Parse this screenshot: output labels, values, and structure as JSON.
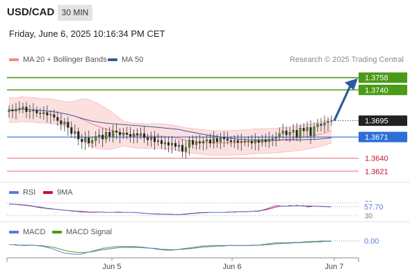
{
  "header": {
    "pair": "USD/CAD",
    "timeframe": "30 MIN",
    "datetime": "Friday, June 6, 2025 10:16:34 PM CET"
  },
  "legend": {
    "ma20_bb": "MA 20 + Bollinger Bands",
    "ma50": "MA 50",
    "credit": "Research © 2025 Trading Central"
  },
  "rsi_legend": {
    "rsi": "RSI",
    "ma9": "9MA"
  },
  "macd_legend": {
    "macd": "MACD",
    "signal": "MACD Signal"
  },
  "colors": {
    "green": "#4b9a18",
    "blue": "#2c6fd6",
    "red": "#ea8c8c",
    "redtext": "#c8102e",
    "dark": "#222222",
    "ma50": "#3a5a99",
    "ma20": "#f08a8a",
    "band": "#fbdada",
    "rsi": "#5b7ad9",
    "rsi_ma": "#c8102e",
    "macd": "#5b7ad9",
    "macd_signal": "#4b9a18"
  },
  "chart_data": [
    {
      "type": "candlestick",
      "ylim": [
        1.3605,
        1.3775
      ],
      "x_ticks": [
        "Jun 5",
        "Jun 6",
        "Jun 7"
      ],
      "price_levels": [
        {
          "value": 1.3758,
          "label": "1.3758",
          "kind": "resistance"
        },
        {
          "value": 1.374,
          "label": "1.3740",
          "kind": "resistance"
        },
        {
          "value": 1.3695,
          "label": "1.3695",
          "kind": "last-price"
        },
        {
          "value": 1.3671,
          "label": "1.3671",
          "kind": "pivot"
        },
        {
          "value": 1.364,
          "label": "1.3640",
          "kind": "support"
        },
        {
          "value": 1.3621,
          "label": "1.3621",
          "kind": "support"
        }
      ],
      "forecast_arrow": {
        "from": 1.3695,
        "to": 1.3753
      },
      "close": [
        1.3711,
        1.3709,
        1.3712,
        1.3713,
        1.3715,
        1.3708,
        1.3709,
        1.371,
        1.3706,
        1.3705,
        1.3707,
        1.3703,
        1.3704,
        1.37,
        1.3695,
        1.369,
        1.3693,
        1.3685,
        1.3676,
        1.3679,
        1.3668,
        1.3664,
        1.367,
        1.3662,
        1.3666,
        1.3672,
        1.3674,
        1.3668,
        1.3678,
        1.3672,
        1.368,
        1.3678,
        1.3674,
        1.3677,
        1.3675,
        1.3672,
        1.3676,
        1.3674,
        1.3676,
        1.367,
        1.3667,
        1.3671,
        1.3664,
        1.3666,
        1.3661,
        1.3663,
        1.3659,
        1.3662,
        1.3657,
        1.3659,
        1.365,
        1.3656,
        1.3666,
        1.366,
        1.3664,
        1.3662,
        1.3665,
        1.3667,
        1.3662,
        1.3669,
        1.3664,
        1.367,
        1.3668,
        1.3666,
        1.3664,
        1.3666,
        1.3663,
        1.3665,
        1.3664,
        1.3665,
        1.3662,
        1.3666,
        1.3663,
        1.3667,
        1.3664,
        1.3668,
        1.3669,
        1.3671,
        1.3676,
        1.368,
        1.3674,
        1.3678,
        1.3681,
        1.3671,
        1.3684,
        1.368,
        1.3685,
        1.3673,
        1.3686,
        1.369,
        1.3688,
        1.3692,
        1.3694,
        1.3695
      ]
    },
    {
      "type": "line",
      "title": "RSI",
      "y_ticks": [
        70,
        30
      ],
      "value_label": "57.70",
      "rsi": [
        67,
        66,
        65,
        65,
        64,
        63,
        62,
        60,
        58,
        57,
        55,
        53,
        52,
        50,
        49,
        48,
        47,
        46,
        44,
        43,
        42,
        41,
        41,
        40,
        40,
        40,
        41,
        41,
        40,
        40,
        40,
        41,
        41,
        40,
        40,
        40,
        40,
        39,
        38,
        37,
        36,
        35,
        35,
        34,
        34,
        34,
        33,
        33,
        33,
        33,
        34,
        35,
        36,
        37,
        38,
        39,
        40,
        40,
        40,
        40,
        40,
        40,
        40,
        41,
        41,
        42,
        42,
        42,
        42,
        42,
        43,
        44,
        45,
        47,
        50,
        54,
        58,
        62,
        61,
        59,
        60,
        62,
        60,
        63,
        60,
        62,
        57,
        58,
        61,
        59,
        58,
        59,
        57,
        58
      ],
      "ma9": [
        66,
        66,
        65,
        64,
        63,
        62,
        61,
        59,
        57,
        55,
        54,
        52,
        51,
        50,
        49,
        48,
        47,
        46,
        45,
        44,
        43,
        43,
        42,
        41,
        41,
        41,
        41,
        41,
        40,
        40,
        40,
        40,
        40,
        40,
        40,
        40,
        40,
        39,
        38,
        37,
        36,
        35,
        35,
        35,
        34,
        34,
        34,
        34,
        33,
        33,
        33,
        34,
        35,
        36,
        37,
        38,
        39,
        39,
        40,
        40,
        40,
        40,
        40,
        40,
        41,
        41,
        42,
        42,
        42,
        42,
        43,
        43,
        44,
        46,
        48,
        51,
        54,
        57,
        59,
        60,
        60,
        60,
        61,
        61,
        61,
        60,
        60,
        60,
        60,
        59,
        59,
        58,
        58,
        58
      ]
    },
    {
      "type": "line",
      "title": "MACD",
      "value_label": "0.00",
      "macd": [
        0.2,
        0.2,
        0.1,
        0.1,
        0.0,
        0.0,
        0.1,
        0.1,
        0.0,
        -0.1,
        -0.2,
        -0.4,
        -0.6,
        -0.8,
        -1.1,
        -1.4,
        -1.6,
        -1.7,
        -1.8,
        -1.9,
        -1.9,
        -1.8,
        -1.6,
        -1.4,
        -1.2,
        -1.0,
        -0.8,
        -0.6,
        -0.5,
        -0.4,
        -0.3,
        -0.2,
        -0.2,
        -0.2,
        -0.2,
        -0.2,
        -0.2,
        -0.3,
        -0.3,
        -0.4,
        -0.5,
        -0.6,
        -0.7,
        -0.8,
        -0.9,
        -1.0,
        -1.0,
        -1.0,
        -0.9,
        -0.8,
        -0.7,
        -0.6,
        -0.5,
        -0.4,
        -0.3,
        -0.2,
        -0.1,
        -0.1,
        0.0,
        0.0,
        0.0,
        0.0,
        0.0,
        0.0,
        0.0,
        0.0,
        0.0,
        0.0,
        0.0,
        0.0,
        0.1,
        0.1,
        0.1,
        0.2,
        0.3,
        0.4,
        0.5,
        0.6,
        0.6,
        0.6,
        0.6,
        0.6,
        0.7,
        0.7,
        0.7,
        0.8,
        0.8,
        0.9,
        0.9,
        0.9,
        1.0,
        1.0,
        1.0,
        1.0
      ],
      "signal": [
        0.2,
        0.2,
        0.2,
        0.1,
        0.1,
        0.1,
        0.1,
        0.1,
        0.0,
        0.0,
        -0.1,
        -0.2,
        -0.3,
        -0.4,
        -0.6,
        -0.8,
        -1.0,
        -1.2,
        -1.3,
        -1.4,
        -1.5,
        -1.5,
        -1.5,
        -1.4,
        -1.3,
        -1.2,
        -1.0,
        -0.9,
        -0.8,
        -0.7,
        -0.6,
        -0.5,
        -0.4,
        -0.4,
        -0.4,
        -0.4,
        -0.4,
        -0.4,
        -0.4,
        -0.5,
        -0.5,
        -0.6,
        -0.6,
        -0.7,
        -0.8,
        -0.8,
        -0.9,
        -0.9,
        -0.9,
        -0.8,
        -0.8,
        -0.7,
        -0.7,
        -0.6,
        -0.5,
        -0.4,
        -0.3,
        -0.3,
        -0.2,
        -0.2,
        -0.1,
        -0.1,
        -0.1,
        0.0,
        0.0,
        0.0,
        0.0,
        0.0,
        0.0,
        0.0,
        0.0,
        0.1,
        0.1,
        0.1,
        0.2,
        0.2,
        0.3,
        0.4,
        0.4,
        0.5,
        0.5,
        0.5,
        0.6,
        0.6,
        0.6,
        0.7,
        0.7,
        0.7,
        0.8,
        0.8,
        0.8,
        0.9,
        0.9,
        0.9
      ]
    }
  ]
}
